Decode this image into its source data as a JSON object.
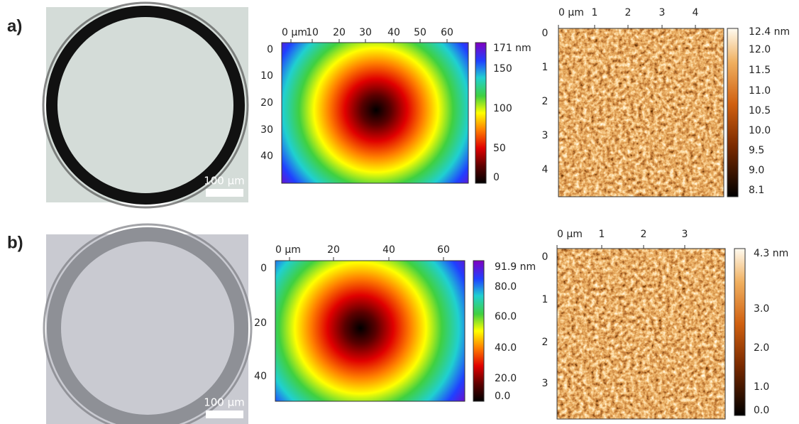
{
  "panels": [
    {
      "label": "a)",
      "micrograph": {
        "scale_bar": "100 µm"
      },
      "height_map": {
        "x_ticks": [
          "0 µm",
          "10",
          "20",
          "30",
          "40",
          "50",
          "60"
        ],
        "y_ticks": [
          "0",
          "10",
          "20",
          "30",
          "40"
        ],
        "colorbar_ticks": [
          "171 nm",
          "150",
          "100",
          "50",
          "0"
        ]
      },
      "afm_map": {
        "x_ticks": [
          "0 µm",
          "1",
          "2",
          "3",
          "4"
        ],
        "y_ticks": [
          "0",
          "1",
          "2",
          "3",
          "4"
        ],
        "colorbar_ticks": [
          "12.4 nm",
          "12.0",
          "11.5",
          "11.0",
          "10.5",
          "10.0",
          "9.5",
          "9.0",
          "8.1"
        ]
      }
    },
    {
      "label": "b)",
      "micrograph": {
        "scale_bar": "100 µm"
      },
      "height_map": {
        "x_ticks": [
          "0 µm",
          "20",
          "40",
          "60"
        ],
        "y_ticks": [
          "0",
          "20",
          "40"
        ],
        "colorbar_ticks": [
          "91.9 nm",
          "80.0",
          "60.0",
          "40.0",
          "20.0",
          "0.0"
        ]
      },
      "afm_map": {
        "x_ticks": [
          "0 µm",
          "1",
          "2",
          "3"
        ],
        "y_ticks": [
          "0",
          "1",
          "2",
          "3"
        ],
        "colorbar_ticks": [
          "4.3 nm",
          "3.0",
          "2.0",
          "1.0",
          "0.0"
        ]
      }
    }
  ]
}
